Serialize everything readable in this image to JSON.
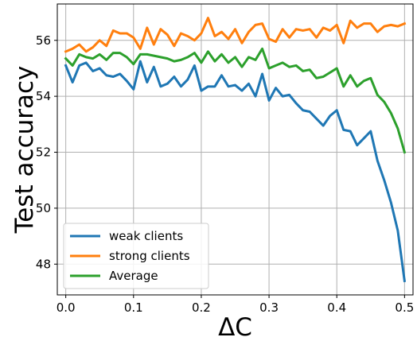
{
  "chart_data": {
    "type": "line",
    "xlabel": "ΔC",
    "ylabel": "Test accuracy",
    "xlim": [
      -0.0125,
      0.5125
    ],
    "ylim": [
      46.9,
      57.3
    ],
    "xticks": [
      0.0,
      0.1,
      0.2,
      0.3,
      0.4,
      0.5
    ],
    "xtick_labels": [
      "0.0",
      "0.1",
      "0.2",
      "0.3",
      "0.4",
      "0.5"
    ],
    "yticks": [
      48,
      50,
      52,
      54,
      56
    ],
    "ytick_labels": [
      "48",
      "50",
      "52",
      "54",
      "56"
    ],
    "grid": true,
    "legend_position": "lower-left",
    "x": [
      0.0,
      0.01,
      0.02,
      0.03,
      0.04,
      0.05,
      0.06,
      0.07,
      0.08,
      0.09,
      0.1,
      0.11,
      0.12,
      0.13,
      0.14,
      0.15,
      0.16,
      0.17,
      0.18,
      0.19,
      0.2,
      0.21,
      0.22,
      0.23,
      0.24,
      0.25,
      0.26,
      0.27,
      0.28,
      0.29,
      0.3,
      0.31,
      0.32,
      0.33,
      0.34,
      0.35,
      0.36,
      0.37,
      0.38,
      0.39,
      0.4,
      0.41,
      0.42,
      0.43,
      0.44,
      0.45,
      0.46,
      0.47,
      0.48,
      0.49,
      0.5
    ],
    "series": [
      {
        "name": "weak clients",
        "color": "#1f77b4",
        "values": [
          55.1,
          54.5,
          55.1,
          55.2,
          54.9,
          55.0,
          54.75,
          54.7,
          54.8,
          54.55,
          54.25,
          55.25,
          54.5,
          55.05,
          54.35,
          54.45,
          54.7,
          54.35,
          54.6,
          55.1,
          54.2,
          54.35,
          54.35,
          54.75,
          54.35,
          54.4,
          54.2,
          54.45,
          54.0,
          54.8,
          53.85,
          54.3,
          54.0,
          54.05,
          53.75,
          53.5,
          53.45,
          53.2,
          52.95,
          53.3,
          53.5,
          52.8,
          52.75,
          52.25,
          52.5,
          52.75,
          51.7,
          51.0,
          50.2,
          49.2,
          47.4
        ]
      },
      {
        "name": "strong clients",
        "color": "#ff7f0e",
        "values": [
          55.6,
          55.7,
          55.85,
          55.6,
          55.75,
          56.0,
          55.8,
          56.35,
          56.25,
          56.25,
          56.1,
          55.7,
          56.45,
          55.85,
          56.4,
          56.2,
          55.8,
          56.25,
          56.15,
          56.0,
          56.25,
          56.8,
          56.15,
          56.3,
          56.05,
          56.4,
          55.9,
          56.3,
          56.55,
          56.6,
          56.05,
          55.95,
          56.4,
          56.1,
          56.4,
          56.35,
          56.4,
          56.1,
          56.45,
          56.35,
          56.55,
          55.9,
          56.7,
          56.45,
          56.6,
          56.6,
          56.3,
          56.5,
          56.55,
          56.5,
          56.6
        ]
      },
      {
        "name": "Average",
        "color": "#2ca02c",
        "values": [
          55.35,
          55.1,
          55.5,
          55.4,
          55.35,
          55.5,
          55.3,
          55.55,
          55.55,
          55.4,
          55.15,
          55.5,
          55.5,
          55.45,
          55.4,
          55.35,
          55.25,
          55.3,
          55.4,
          55.55,
          55.2,
          55.6,
          55.25,
          55.5,
          55.2,
          55.4,
          55.05,
          55.4,
          55.3,
          55.7,
          55.0,
          55.1,
          55.2,
          55.05,
          55.1,
          54.9,
          54.95,
          54.65,
          54.7,
          54.85,
          55.0,
          54.35,
          54.75,
          54.35,
          54.55,
          54.65,
          54.05,
          53.8,
          53.4,
          52.85,
          52.0
        ]
      }
    ]
  }
}
